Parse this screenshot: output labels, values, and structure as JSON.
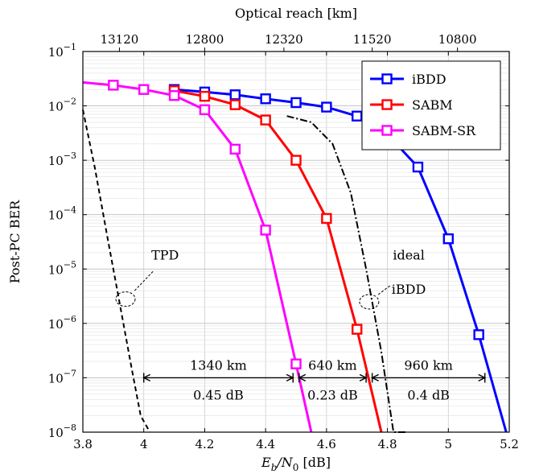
{
  "chart_data": {
    "type": "line",
    "title": "",
    "xlabel": "E_b/N_0 [dB]",
    "xlabel_parts": {
      "main": "E",
      "sub1": "b",
      "mid": "/N",
      "sub2": "0",
      "unit": " [dB]"
    },
    "ylabel": "Post-PC BER",
    "x2label": "Optical reach [km]",
    "xlim": [
      3.8,
      5.2
    ],
    "ylim": [
      1e-08,
      0.1
    ],
    "yscale": "log",
    "grid": true,
    "legend_position": "top-right",
    "x_ticks": [
      "3.8",
      "4",
      "4.2",
      "4.4",
      "4.6",
      "4.8",
      "5",
      "5.2"
    ],
    "x_tick_values": [
      3.8,
      4.0,
      4.2,
      4.4,
      4.6,
      4.8,
      5.0,
      5.2
    ],
    "y_ticks": [
      {
        "value": 0.1,
        "base": "10",
        "exp": "−1"
      },
      {
        "value": 0.01,
        "base": "10",
        "exp": "−2"
      },
      {
        "value": 0.001,
        "base": "10",
        "exp": "−3"
      },
      {
        "value": 0.0001,
        "base": "10",
        "exp": "−4"
      },
      {
        "value": 1e-05,
        "base": "10",
        "exp": "−5"
      },
      {
        "value": 1e-06,
        "base": "10",
        "exp": "−6"
      },
      {
        "value": 1e-07,
        "base": "10",
        "exp": "−7"
      },
      {
        "value": 1e-08,
        "base": "10",
        "exp": "−8"
      }
    ],
    "x2_ticks": [
      {
        "label": "13120",
        "x": 3.92
      },
      {
        "label": "12800",
        "x": 4.2
      },
      {
        "label": "12320",
        "x": 4.46
      },
      {
        "label": "11520",
        "x": 4.75
      },
      {
        "label": "10800",
        "x": 5.03
      }
    ],
    "series": [
      {
        "name": "iBDD",
        "color": "#0000ff",
        "x": [
          4.1,
          4.2,
          4.3,
          4.4,
          4.5,
          4.6,
          4.7,
          4.8,
          4.9,
          5.0,
          5.1,
          5.19
        ],
        "y": [
          0.02,
          0.018,
          0.016,
          0.0135,
          0.0115,
          0.0095,
          0.0065,
          0.003,
          0.00075,
          3.6e-05,
          6.2e-07,
          1e-08
        ],
        "markers": [
          true,
          true,
          true,
          true,
          true,
          true,
          true,
          true,
          true,
          true,
          true,
          false
        ]
      },
      {
        "name": "SABM",
        "color": "#ff0000",
        "x": [
          4.1,
          4.2,
          4.3,
          4.4,
          4.5,
          4.6,
          4.7,
          4.78
        ],
        "y": [
          0.019,
          0.015,
          0.0105,
          0.0055,
          0.001,
          8.5e-05,
          7.8e-07,
          1e-08
        ],
        "markers": [
          true,
          true,
          true,
          true,
          true,
          true,
          true,
          false
        ]
      },
      {
        "name": "SABM-SR",
        "color": "#ff00ff",
        "x": [
          3.8,
          3.9,
          4.0,
          4.1,
          4.2,
          4.3,
          4.4,
          4.5,
          4.55
        ],
        "y": [
          0.027,
          0.024,
          0.02,
          0.0155,
          0.0085,
          0.0016,
          5.2e-05,
          1.8e-07,
          1e-08
        ],
        "markers": [
          false,
          true,
          true,
          true,
          true,
          true,
          true,
          true,
          false
        ]
      }
    ],
    "reference_curves": [
      {
        "label": "TPD",
        "style": "dashed",
        "x": [
          3.8,
          3.84,
          3.88,
          3.92,
          3.96,
          3.99,
          4.02
        ],
        "y": [
          0.0085,
          0.0007,
          4e-05,
          2.5e-06,
          1.5e-07,
          2e-08,
          1e-08
        ]
      },
      {
        "label": "ideal iBDD",
        "style": "dashdot",
        "x": [
          4.47,
          4.55,
          4.62,
          4.68,
          4.73,
          4.78,
          4.82,
          4.86
        ],
        "y": [
          0.0065,
          0.005,
          0.002,
          0.00025,
          1e-05,
          3e-07,
          1e-08,
          1e-08
        ]
      }
    ],
    "annotations": [
      {
        "text": "TPD",
        "x": 4.07,
        "y": 1.5e-05
      },
      {
        "text": "ideal",
        "x": 4.87,
        "y": 1.5e-05
      },
      {
        "text": "iBDD",
        "x": 4.87,
        "y": 3.5e-06
      }
    ],
    "gap_arrows": [
      {
        "x1": 4.0,
        "x2": 4.49,
        "y": 1e-07,
        "top": "1340 km",
        "bottom": "0.45 dB"
      },
      {
        "x1": 4.51,
        "x2": 4.73,
        "y": 1e-07,
        "top": "640 km",
        "bottom": "0.23 dB"
      },
      {
        "x1": 4.75,
        "x2": 5.12,
        "y": 1e-07,
        "top": "960 km",
        "bottom": "0.4 dB"
      }
    ]
  }
}
